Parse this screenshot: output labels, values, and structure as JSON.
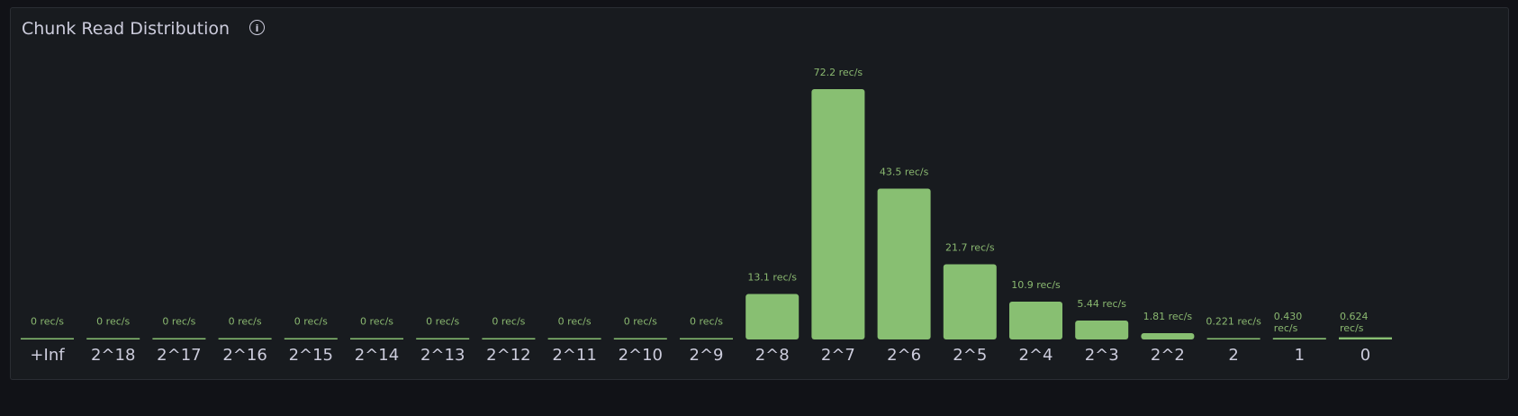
{
  "panel": {
    "title": "Chunk Read Distribution",
    "info_icon": "info-circle-icon"
  },
  "chart_data": {
    "type": "bar",
    "title": "Chunk Read Distribution",
    "xlabel": "",
    "ylabel": "",
    "unit": "rec/s",
    "grid": false,
    "legend": "none",
    "color": "#88bf72",
    "categories": [
      "+Inf",
      "2^18",
      "2^17",
      "2^16",
      "2^15",
      "2^14",
      "2^13",
      "2^12",
      "2^11",
      "2^10",
      "2^9",
      "2^8",
      "2^7",
      "2^6",
      "2^5",
      "2^4",
      "2^3",
      "2^2",
      "2",
      "1",
      "0"
    ],
    "values": [
      0,
      0,
      0,
      0,
      0,
      0,
      0,
      0,
      0,
      0,
      0,
      13.1,
      72.2,
      43.5,
      21.7,
      10.9,
      5.44,
      1.81,
      0.221,
      0.43,
      0.624
    ],
    "value_labels": [
      "0 rec/s",
      "0 rec/s",
      "0 rec/s",
      "0 rec/s",
      "0 rec/s",
      "0 rec/s",
      "0 rec/s",
      "0 rec/s",
      "0 rec/s",
      "0 rec/s",
      "0 rec/s",
      "13.1 rec/s",
      "72.2 rec/s",
      "43.5 rec/s",
      "21.7 rec/s",
      "10.9 rec/s",
      "5.44 rec/s",
      "1.81 rec/s",
      "0.221 rec/s",
      "0.430 rec/s",
      "0.624 rec/s"
    ]
  }
}
